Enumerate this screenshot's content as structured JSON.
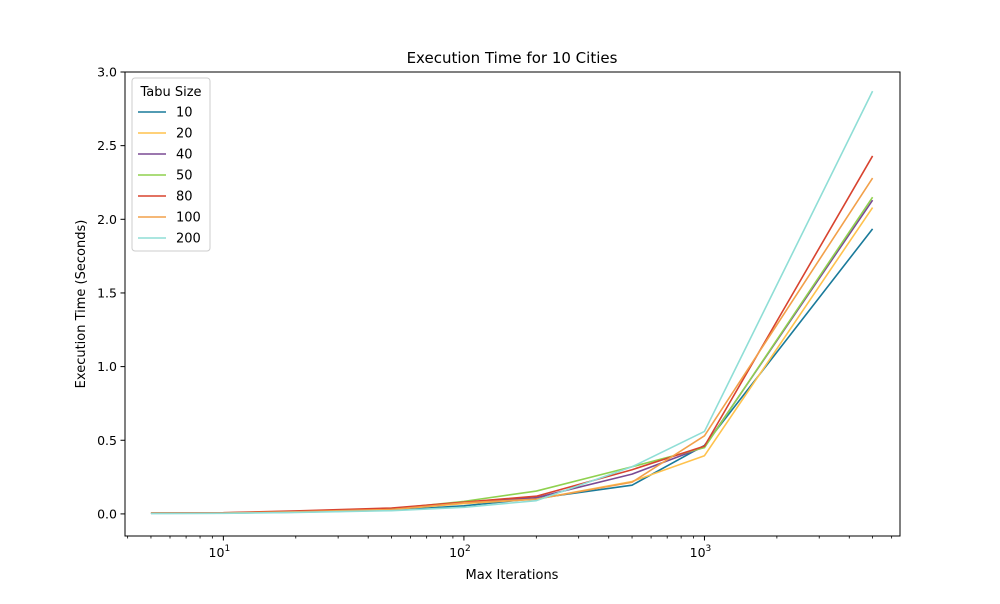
{
  "chart_data": {
    "type": "line",
    "title": "Execution Time for 10 Cities",
    "xlabel": "Max Iterations",
    "ylabel": "Execution Time (Seconds)",
    "xscale": "log",
    "xlim": [
      3.9,
      6500
    ],
    "ylim": [
      -0.15,
      3.0
    ],
    "grid": false,
    "legend": {
      "title": "Tabu Size",
      "placement": "top-left"
    },
    "x": [
      5,
      10,
      20,
      50,
      100,
      200,
      500,
      1000,
      5000
    ],
    "x_ticks": [
      {
        "value": 10,
        "base": "10",
        "exp": "1"
      },
      {
        "value": 100,
        "base": "10",
        "exp": "2"
      },
      {
        "value": 1000,
        "base": "10",
        "exp": "3"
      }
    ],
    "y_ticks": [
      {
        "value": 0.0,
        "label": "0.0"
      },
      {
        "value": 0.5,
        "label": "0.5"
      },
      {
        "value": 1.0,
        "label": "1.0"
      },
      {
        "value": 1.5,
        "label": "1.5"
      },
      {
        "value": 2.0,
        "label": "2.0"
      },
      {
        "value": 2.5,
        "label": "2.5"
      },
      {
        "value": 3.0,
        "label": "3.0"
      }
    ],
    "series": [
      {
        "name": "10",
        "color": "#197a9a",
        "values": [
          0.004,
          0.005,
          0.012,
          0.025,
          0.055,
          0.105,
          0.195,
          0.465,
          1.935
        ]
      },
      {
        "name": "20",
        "color": "#ffc24d",
        "values": [
          0.005,
          0.006,
          0.015,
          0.03,
          0.07,
          0.1,
          0.22,
          0.395,
          2.08
        ]
      },
      {
        "name": "40",
        "color": "#7a4a94",
        "values": [
          0.005,
          0.006,
          0.016,
          0.033,
          0.08,
          0.11,
          0.27,
          0.455,
          2.13
        ]
      },
      {
        "name": "50",
        "color": "#8fd14f",
        "values": [
          0.006,
          0.007,
          0.018,
          0.035,
          0.085,
          0.155,
          0.32,
          0.45,
          2.15
        ]
      },
      {
        "name": "80",
        "color": "#d8432f",
        "values": [
          0.007,
          0.008,
          0.02,
          0.04,
          0.08,
          0.12,
          0.3,
          0.46,
          2.43
        ]
      },
      {
        "name": "100",
        "color": "#f2a04a",
        "values": [
          0.005,
          0.006,
          0.014,
          0.03,
          0.075,
          0.1,
          0.215,
          0.53,
          2.28
        ]
      },
      {
        "name": "200",
        "color": "#8fded6",
        "values": [
          0.003,
          0.004,
          0.01,
          0.022,
          0.045,
          0.09,
          0.32,
          0.56,
          2.87
        ]
      }
    ]
  }
}
